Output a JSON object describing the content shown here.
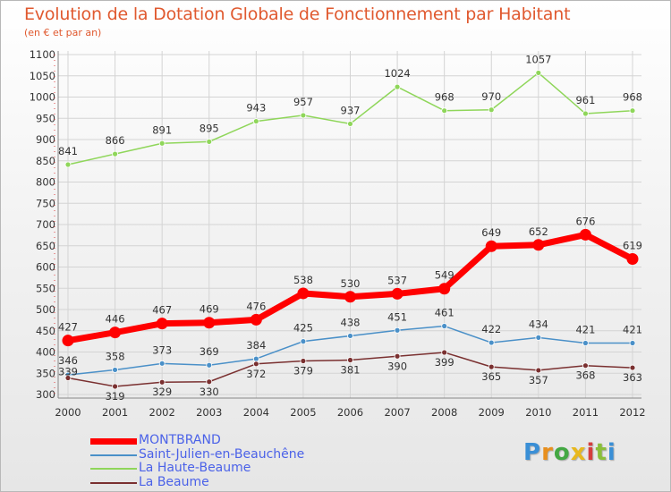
{
  "chart_data": {
    "type": "line",
    "title": "Evolution de la Dotation Globale de Fonctionnement par Habitant",
    "subtitle": "(en € et par an)",
    "x": [
      2000,
      2001,
      2002,
      2003,
      2004,
      2005,
      2006,
      2007,
      2008,
      2009,
      2010,
      2011,
      2012
    ],
    "ylim": [
      300,
      1100
    ],
    "yticks": [
      300,
      350,
      400,
      450,
      500,
      550,
      600,
      650,
      700,
      750,
      800,
      850,
      900,
      950,
      1000,
      1050,
      1100
    ],
    "grid": true,
    "legend_position": "bottom-left",
    "series": [
      {
        "name": "MONTBRAND",
        "color": "#ff0000",
        "values": [
          427,
          446,
          467,
          469,
          476,
          538,
          530,
          537,
          549,
          649,
          652,
          676,
          619
        ]
      },
      {
        "name": "Saint-Julien-en-Beauchêne",
        "color": "#4a90c8",
        "values": [
          346,
          358,
          373,
          369,
          384,
          425,
          438,
          451,
          461,
          422,
          434,
          421,
          421
        ]
      },
      {
        "name": "La Haute-Beaume",
        "color": "#8fd65a",
        "values": [
          841,
          866,
          891,
          895,
          943,
          957,
          937,
          1024,
          968,
          970,
          1057,
          961,
          968
        ]
      },
      {
        "name": "La Beaume",
        "color": "#7a3030",
        "values": [
          339,
          319,
          329,
          330,
          372,
          379,
          381,
          390,
          399,
          365,
          357,
          368,
          363
        ]
      }
    ]
  },
  "logo_text": "Proxiti"
}
